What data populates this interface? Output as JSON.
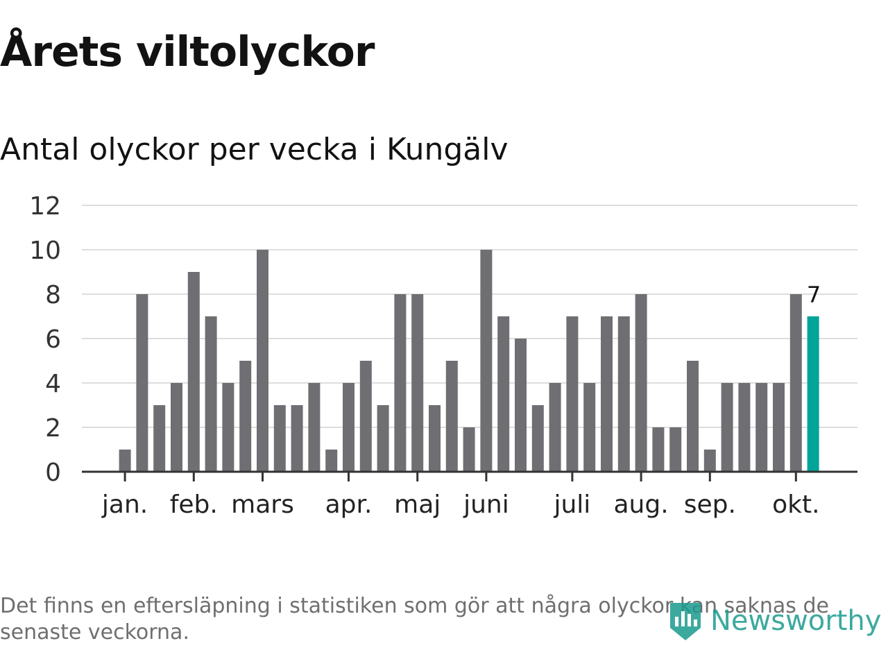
{
  "title": "Årets viltolyckor",
  "subtitle": "Antal olyckor per vecka i Kungälv",
  "footnote": "Det finns en eftersläpning i statistiken som gör att några olyckor kan saknas de senaste veckorna.",
  "logo": {
    "text": "Newsworthy",
    "icon": "newsworthy-logo-icon",
    "color": "#1b9b8e"
  },
  "colors": {
    "bar": "#6f6e73",
    "highlight": "#00a499",
    "grid": "#dddddd",
    "axis": "#333333",
    "text": "#121212"
  },
  "chart_data": {
    "type": "bar",
    "title": "Årets viltolyckor",
    "subtitle": "Antal olyckor per vecka i Kungälv",
    "xlabel": "",
    "ylabel": "",
    "ylim": [
      0,
      12
    ],
    "yticks": [
      0,
      2,
      4,
      6,
      8,
      10,
      12
    ],
    "grid": true,
    "x": [
      1,
      2,
      3,
      4,
      5,
      6,
      7,
      8,
      9,
      10,
      11,
      12,
      13,
      14,
      15,
      16,
      17,
      18,
      19,
      20,
      21,
      22,
      23,
      24,
      25,
      26,
      27,
      28,
      29,
      30,
      31,
      32,
      33,
      34,
      35,
      36,
      37,
      38,
      39,
      40,
      41,
      42,
      43
    ],
    "values": [
      0,
      0,
      1,
      8,
      3,
      4,
      9,
      7,
      4,
      5,
      10,
      3,
      3,
      4,
      1,
      4,
      5,
      3,
      8,
      8,
      3,
      5,
      2,
      10,
      7,
      6,
      3,
      4,
      7,
      4,
      7,
      7,
      8,
      2,
      2,
      5,
      1,
      4,
      4,
      4,
      4,
      8,
      7
    ],
    "highlight_index": 42,
    "highlight_label": "7",
    "month_ticks": [
      {
        "label": "jan.",
        "week": 3
      },
      {
        "label": "feb.",
        "week": 7
      },
      {
        "label": "mars",
        "week": 11
      },
      {
        "label": "apr.",
        "week": 16
      },
      {
        "label": "maj",
        "week": 20
      },
      {
        "label": "juni",
        "week": 24
      },
      {
        "label": "juli",
        "week": 29
      },
      {
        "label": "aug.",
        "week": 33
      },
      {
        "label": "sep.",
        "week": 37
      },
      {
        "label": "okt.",
        "week": 42
      }
    ]
  }
}
